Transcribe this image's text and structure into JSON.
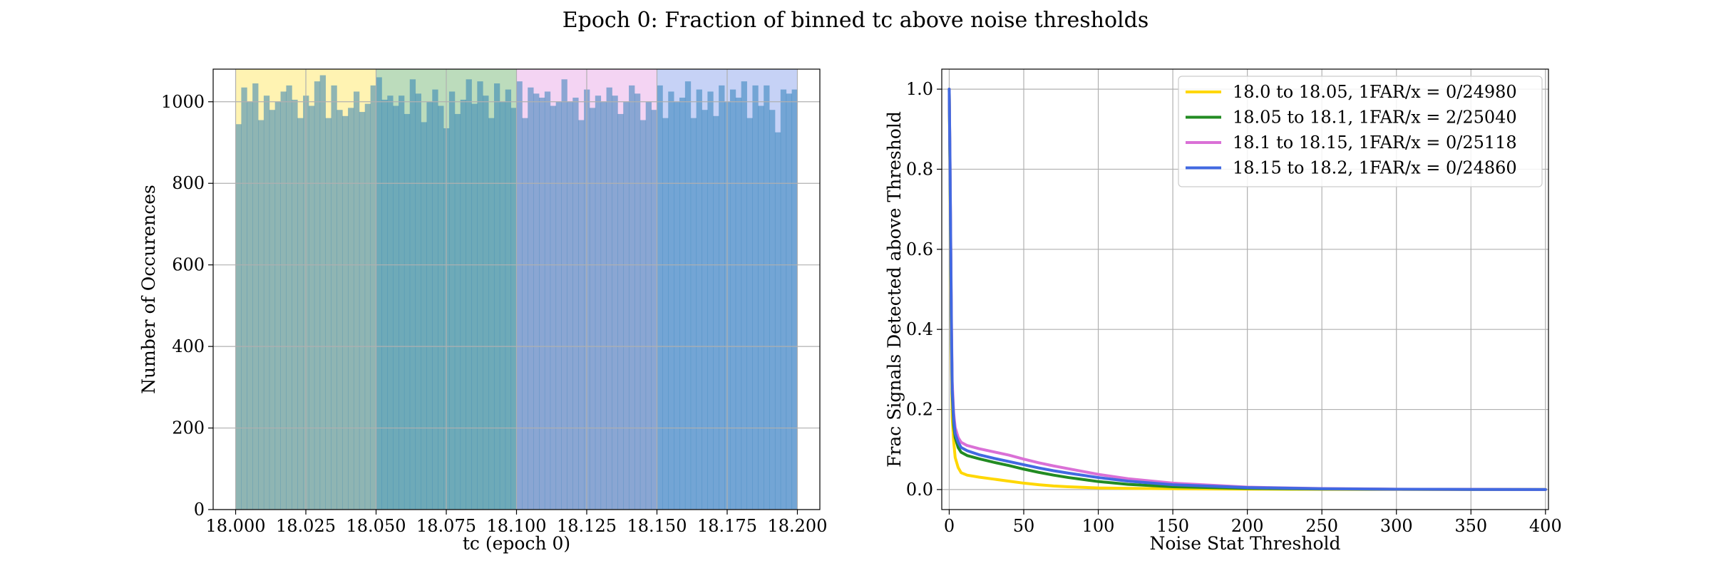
{
  "title": "Epoch 0: Fraction of binned tc above noise thresholds",
  "colors": {
    "bin1": "#ffd700",
    "bin2": "#228b22",
    "bin3": "#da70d6",
    "bin4": "#4169e1",
    "hist_fill": "#1f77b4",
    "grid": "#b0b0b0"
  },
  "chart_data": [
    {
      "type": "bar",
      "chart": "histogram",
      "xlabel": "tc (epoch 0)",
      "ylabel": "Number of Occurences",
      "xlim": [
        17.992,
        18.208
      ],
      "ylim": [
        0,
        1080
      ],
      "xticks": [
        18.0,
        18.025,
        18.05,
        18.075,
        18.1,
        18.125,
        18.15,
        18.175,
        18.2
      ],
      "xtick_labels": [
        "18.000",
        "18.025",
        "18.050",
        "18.075",
        "18.100",
        "18.125",
        "18.150",
        "18.175",
        "18.200"
      ],
      "yticks": [
        0,
        200,
        400,
        600,
        800,
        1000
      ],
      "grid": true,
      "shaded_bins": [
        {
          "from": 18.0,
          "to": 18.05,
          "color": "#ffd700"
        },
        {
          "from": 18.05,
          "to": 18.1,
          "color": "#228b22"
        },
        {
          "from": 18.1,
          "to": 18.15,
          "color": "#da70d6"
        },
        {
          "from": 18.15,
          "to": 18.2,
          "color": "#4169e1"
        }
      ],
      "bin_start": 18.0,
      "bin_width": 0.002,
      "counts": [
        945,
        1035,
        1000,
        1045,
        955,
        1015,
        980,
        1000,
        1025,
        1040,
        1005,
        960,
        1015,
        990,
        1050,
        1065,
        960,
        1040,
        980,
        965,
        985,
        1025,
        975,
        995,
        1040,
        1060,
        1005,
        1015,
        990,
        1015,
        970,
        1055,
        1020,
        950,
        1000,
        1030,
        990,
        935,
        1025,
        970,
        1005,
        1055,
        995,
        1050,
        1015,
        960,
        1045,
        1000,
        1030,
        985,
        1050,
        960,
        1035,
        1020,
        1010,
        1025,
        990,
        1000,
        1055,
        1000,
        1010,
        955,
        1030,
        985,
        1015,
        1000,
        1035,
        1015,
        970,
        1000,
        1040,
        1020,
        955,
        1000,
        980,
        1040,
        960,
        1025,
        1000,
        1010,
        1050,
        960,
        1030,
        980,
        1025,
        965,
        1040,
        1000,
        1030,
        1010,
        1050,
        960,
        1040,
        990,
        1040,
        980,
        925,
        1030,
        1020,
        1030
      ]
    },
    {
      "type": "line",
      "xlabel": "Noise Stat Threshold",
      "ylabel": "Frac Signals Detected above Threshold",
      "xlim": [
        -5,
        402
      ],
      "ylim": [
        -0.05,
        1.05
      ],
      "xticks": [
        0,
        50,
        100,
        150,
        200,
        250,
        300,
        350,
        400
      ],
      "yticks": [
        0.0,
        0.2,
        0.4,
        0.6,
        0.8,
        1.0
      ],
      "ytick_labels": [
        "0.0",
        "0.2",
        "0.4",
        "0.6",
        "0.8",
        "1.0"
      ],
      "grid": true,
      "legend_position": "top-right",
      "series": [
        {
          "name": "18.0 to 18.05, 1FAR/x = 0/24980",
          "color": "#ffd700",
          "x": [
            0,
            0.5,
            1,
            1.5,
            2,
            3,
            4,
            6,
            8,
            12,
            20,
            30,
            40,
            50,
            60,
            70,
            80,
            100,
            120,
            150,
            200,
            250,
            300,
            350,
            400
          ],
          "y": [
            1.0,
            0.78,
            0.52,
            0.32,
            0.18,
            0.12,
            0.08,
            0.055,
            0.042,
            0.036,
            0.031,
            0.026,
            0.021,
            0.016,
            0.012,
            0.009,
            0.007,
            0.004,
            0.003,
            0.002,
            0.001,
            0.0005,
            0.0002,
            0.0001,
            0.0
          ]
        },
        {
          "name": "18.05 to 18.1, 1FAR/x = 2/25040",
          "color": "#228b22",
          "x": [
            0,
            0.5,
            1,
            1.5,
            2,
            3,
            4,
            6,
            8,
            12,
            20,
            30,
            40,
            50,
            60,
            70,
            80,
            100,
            120,
            150,
            200,
            250,
            300,
            350,
            400
          ],
          "y": [
            1.0,
            0.82,
            0.6,
            0.38,
            0.24,
            0.16,
            0.13,
            0.105,
            0.093,
            0.085,
            0.077,
            0.068,
            0.06,
            0.051,
            0.043,
            0.036,
            0.03,
            0.02,
            0.013,
            0.007,
            0.003,
            0.0015,
            0.0007,
            0.0003,
            0.0001
          ]
        },
        {
          "name": "18.1 to 18.15, 1FAR/x = 0/25118",
          "color": "#da70d6",
          "x": [
            0,
            0.5,
            1,
            1.5,
            2,
            3,
            4,
            6,
            8,
            12,
            20,
            30,
            40,
            50,
            60,
            70,
            80,
            100,
            120,
            150,
            200,
            250,
            300,
            350,
            400
          ],
          "y": [
            1.0,
            0.84,
            0.63,
            0.42,
            0.27,
            0.19,
            0.155,
            0.13,
            0.118,
            0.11,
            0.102,
            0.094,
            0.086,
            0.076,
            0.067,
            0.059,
            0.052,
            0.038,
            0.027,
            0.016,
            0.006,
            0.0025,
            0.001,
            0.0004,
            0.0001
          ]
        },
        {
          "name": "18.15 to 18.2, 1FAR/x = 0/24860",
          "color": "#4169e1",
          "x": [
            0,
            0.5,
            1,
            1.5,
            2,
            3,
            4,
            6,
            8,
            12,
            20,
            30,
            40,
            50,
            60,
            70,
            80,
            100,
            120,
            150,
            200,
            250,
            300,
            350,
            400
          ],
          "y": [
            1.0,
            0.83,
            0.61,
            0.4,
            0.25,
            0.175,
            0.14,
            0.118,
            0.105,
            0.097,
            0.087,
            0.078,
            0.07,
            0.062,
            0.054,
            0.047,
            0.041,
            0.03,
            0.021,
            0.012,
            0.005,
            0.002,
            0.0008,
            0.0003,
            0.0001
          ]
        }
      ]
    }
  ]
}
